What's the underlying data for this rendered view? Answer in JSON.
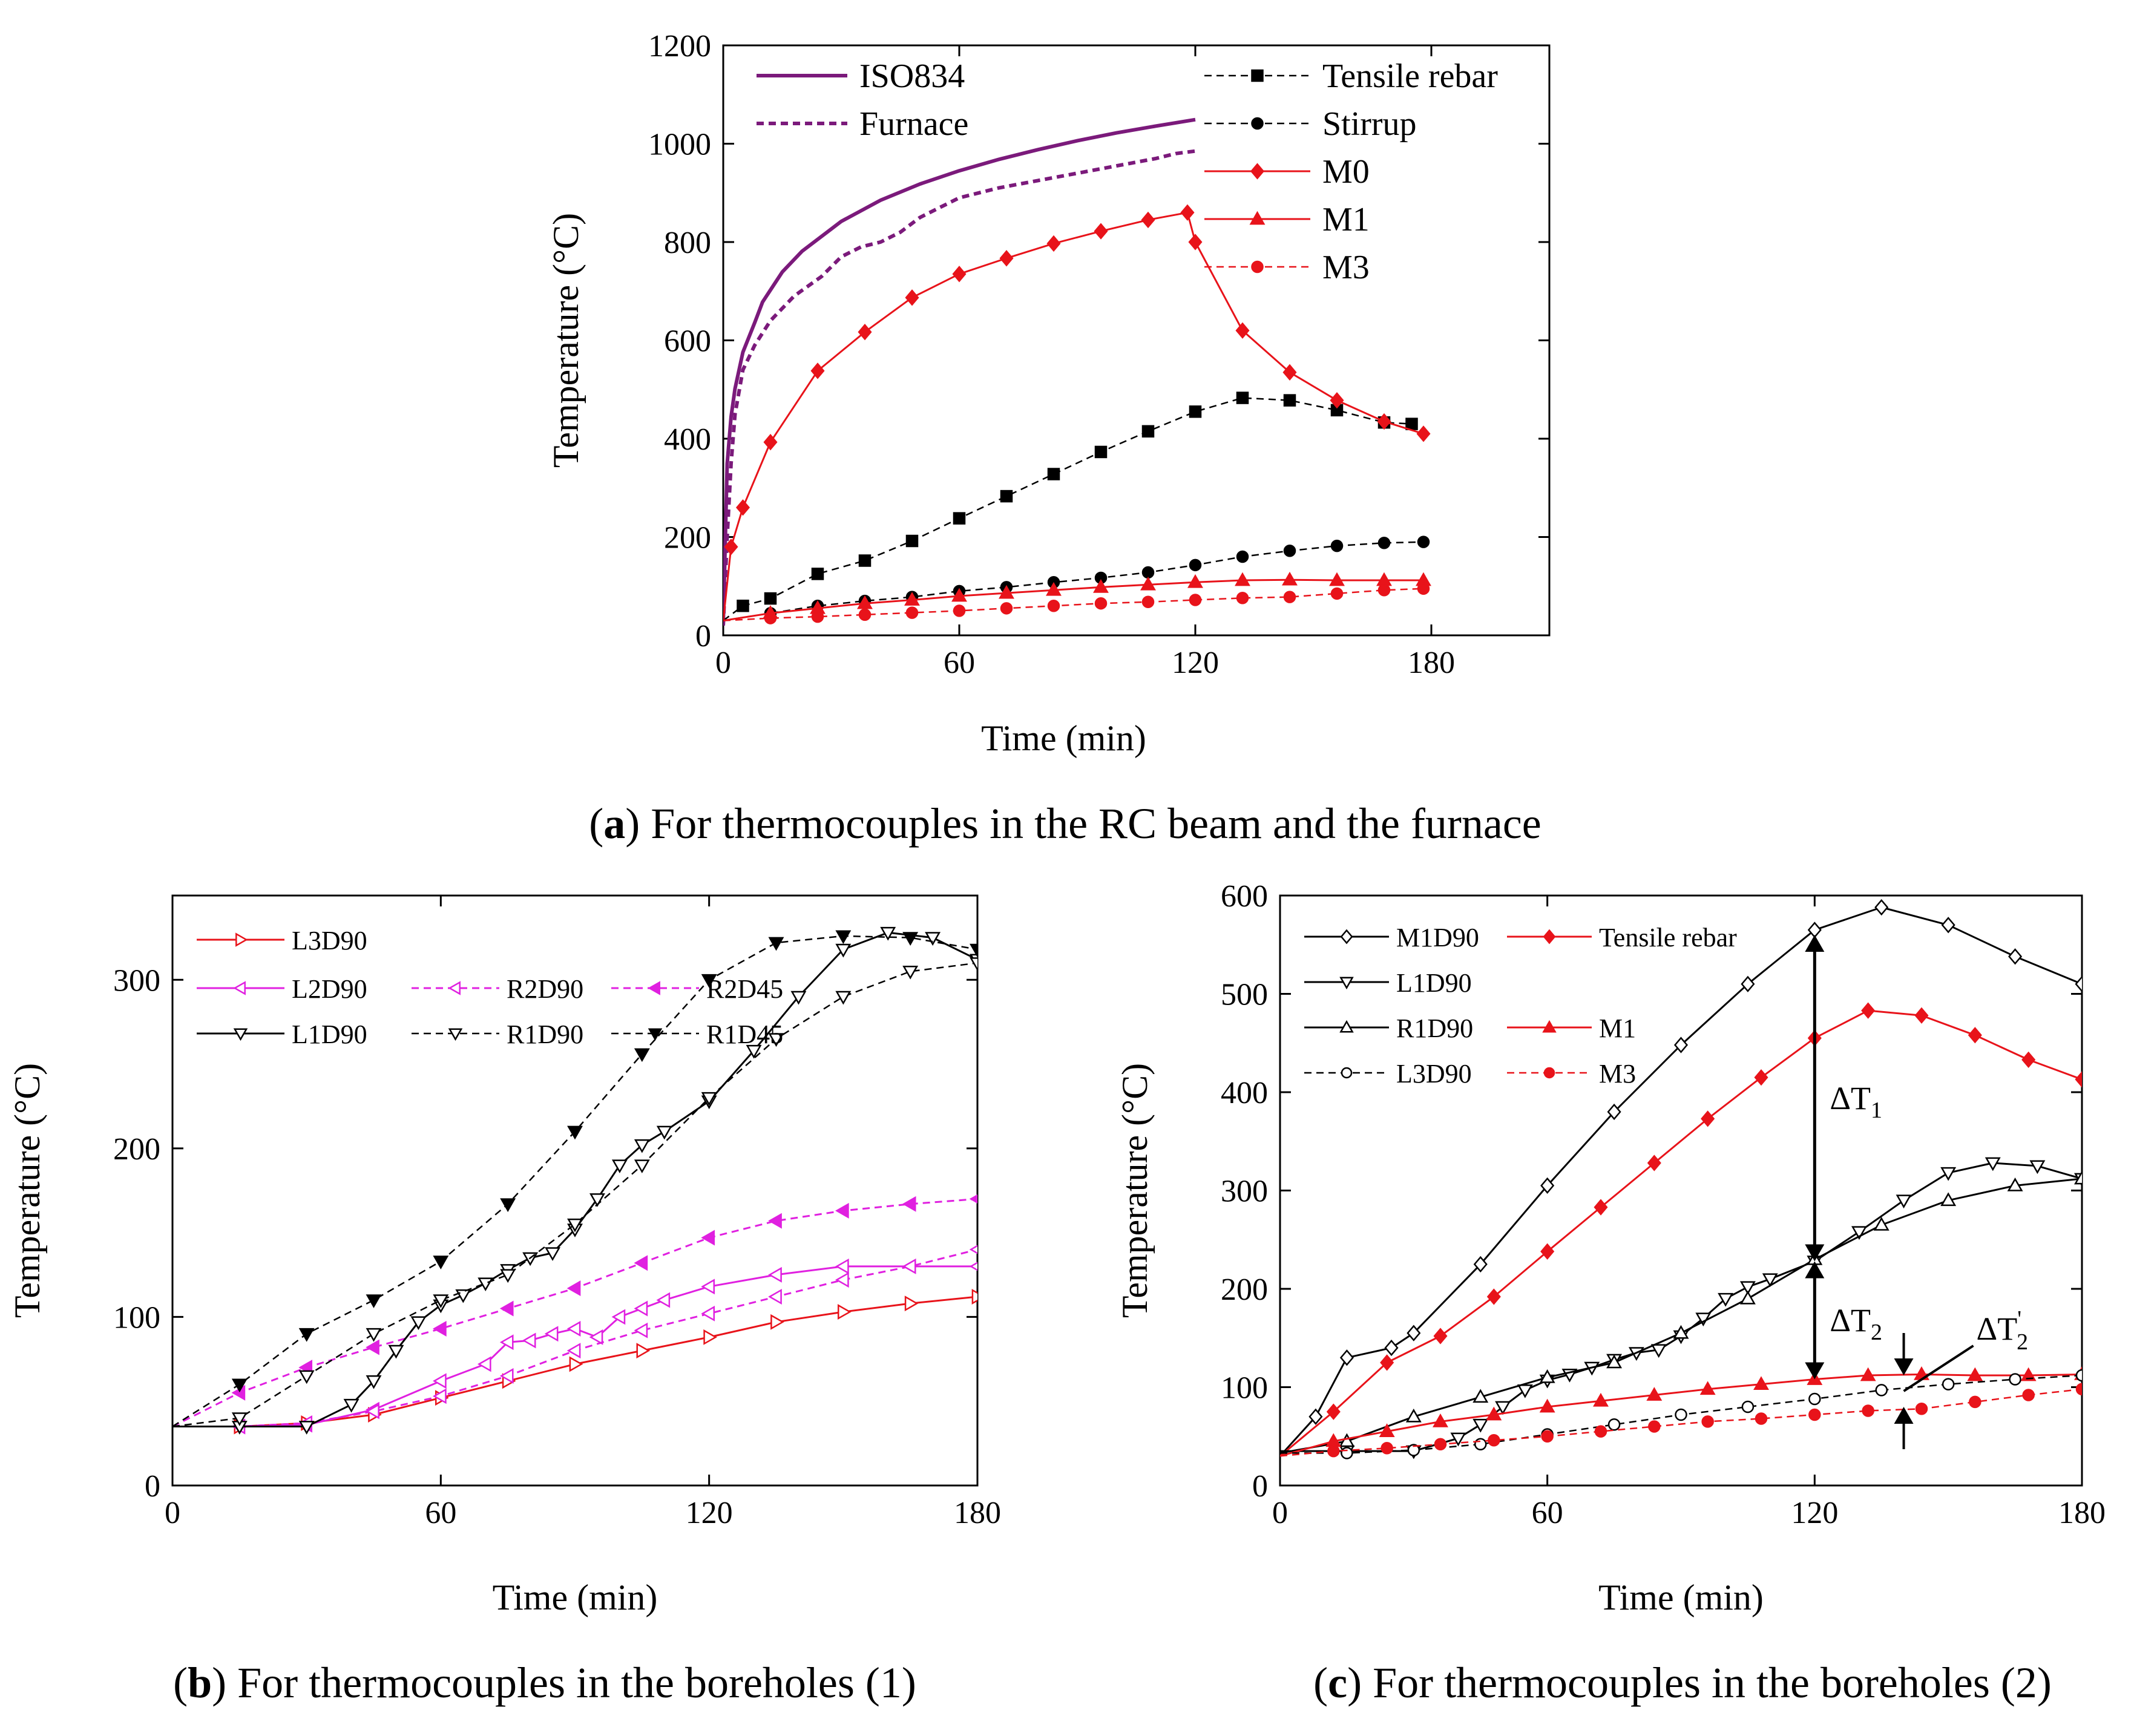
{
  "chart_data": [
    {
      "id": "a",
      "type": "line",
      "caption": {
        "letter": "a",
        "open": "(",
        "close": ")",
        "text": " For thermocouples in the RC beam and the furnace"
      },
      "xlabel": "Time (min)",
      "ylabel": "Temperature (°C)",
      "xlim": [
        0,
        210
      ],
      "ylim": [
        0,
        1200
      ],
      "xticks": [
        0,
        60,
        120,
        180
      ],
      "yticks": [
        0,
        200,
        400,
        600,
        800,
        1000,
        1200
      ],
      "series": [
        {
          "name": "ISO834",
          "color": "#7b1a7b",
          "style": "solid",
          "width": 6,
          "marker": "none",
          "x": [
            0,
            1,
            2,
            3,
            5,
            8,
            10,
            15,
            20,
            30,
            40,
            50,
            60,
            70,
            80,
            90,
            100,
            110,
            120
          ],
          "y": [
            20,
            349,
            445,
            502,
            576,
            636,
            678,
            739,
            781,
            842,
            885,
            918,
            945,
            968,
            988,
            1006,
            1022,
            1036,
            1049
          ]
        },
        {
          "name": "Furnace",
          "color": "#7b1a7b",
          "style": "dash",
          "width": 6,
          "marker": "none",
          "x": [
            0,
            1,
            2,
            3,
            5,
            8,
            12,
            18,
            25,
            30,
            35,
            40,
            45,
            50,
            55,
            60,
            70,
            80,
            90,
            100,
            110,
            115,
            120
          ],
          "y": [
            20,
            200,
            350,
            450,
            540,
            590,
            640,
            690,
            730,
            770,
            790,
            800,
            820,
            850,
            870,
            890,
            910,
            925,
            940,
            955,
            970,
            980,
            985
          ]
        },
        {
          "name": "Tensile rebar",
          "color": "#000000",
          "style": "dash",
          "width": 2.5,
          "marker": "square",
          "fill": "#000",
          "x": [
            0,
            5,
            12,
            24,
            36,
            48,
            60,
            72,
            84,
            96,
            108,
            120,
            132,
            144,
            156,
            168,
            175
          ],
          "y": [
            30,
            60,
            75,
            125,
            152,
            192,
            238,
            283,
            328,
            373,
            415,
            455,
            483,
            478,
            458,
            433,
            430
          ]
        },
        {
          "name": "Stirrup",
          "color": "#000000",
          "style": "dash",
          "width": 2.5,
          "marker": "circle",
          "fill": "#000",
          "x": [
            0,
            12,
            24,
            36,
            48,
            60,
            72,
            84,
            96,
            108,
            120,
            132,
            144,
            156,
            168,
            178
          ],
          "y": [
            30,
            45,
            60,
            70,
            78,
            90,
            98,
            108,
            117,
            128,
            143,
            160,
            172,
            182,
            188,
            190
          ]
        },
        {
          "name": "M0",
          "color": "#e8131a",
          "style": "solid",
          "width": 3,
          "marker": "diamond",
          "fill": "#e8131a",
          "x": [
            0,
            2,
            5,
            12,
            24,
            36,
            48,
            60,
            72,
            84,
            96,
            108,
            118,
            120,
            132,
            144,
            156,
            168,
            178
          ],
          "y": [
            30,
            180,
            260,
            393,
            538,
            617,
            687,
            735,
            767,
            797,
            822,
            845,
            860,
            800,
            620,
            535,
            478,
            435,
            410
          ]
        },
        {
          "name": "M1",
          "color": "#e8131a",
          "style": "solid",
          "width": 3,
          "marker": "triangle",
          "fill": "#e8131a",
          "x": [
            0,
            12,
            24,
            36,
            48,
            60,
            72,
            84,
            96,
            108,
            120,
            132,
            144,
            156,
            168,
            178
          ],
          "y": [
            30,
            45,
            55,
            65,
            72,
            80,
            86,
            92,
            98,
            103,
            108,
            112,
            113,
            112,
            112,
            112
          ]
        },
        {
          "name": "M3",
          "color": "#e8131a",
          "style": "dash",
          "width": 2.5,
          "marker": "circle",
          "fill": "#e8131a",
          "x": [
            0,
            12,
            24,
            36,
            48,
            60,
            72,
            84,
            96,
            108,
            120,
            132,
            144,
            156,
            168,
            178
          ],
          "y": [
            30,
            35,
            38,
            42,
            46,
            50,
            55,
            60,
            65,
            68,
            72,
            76,
            78,
            85,
            92,
            95
          ]
        }
      ]
    },
    {
      "id": "b",
      "type": "line",
      "caption": {
        "letter": "b",
        "open": "(",
        "close": ")",
        "text": " For thermocouples in the boreholes (1)"
      },
      "xlabel": "Time (min)",
      "ylabel": "Temperature (°C)",
      "xlim": [
        0,
        180
      ],
      "ylim": [
        0,
        350
      ],
      "xticks": [
        0,
        60,
        120,
        180
      ],
      "yticks": [
        0,
        100,
        200,
        300
      ],
      "series": [
        {
          "name": "L3D90",
          "color": "#e8131a",
          "style": "solid",
          "width": 3,
          "marker": "tri-right",
          "fill": "none",
          "x": [
            0,
            15,
            30,
            45,
            60,
            75,
            90,
            105,
            120,
            135,
            150,
            165,
            180
          ],
          "y": [
            35,
            35,
            37,
            42,
            52,
            62,
            72,
            80,
            88,
            97,
            103,
            108,
            112
          ]
        },
        {
          "name": "L2D90",
          "color": "#e020e0",
          "style": "solid",
          "width": 3,
          "marker": "tri-left",
          "fill": "none",
          "x": [
            0,
            15,
            30,
            45,
            60,
            70,
            75,
            80,
            85,
            90,
            95,
            100,
            105,
            110,
            120,
            135,
            150,
            165,
            180
          ],
          "y": [
            35,
            35,
            36,
            45,
            62,
            72,
            85,
            86,
            90,
            93,
            88,
            100,
            105,
            110,
            118,
            125,
            130,
            130,
            130
          ]
        },
        {
          "name": "R2D90",
          "color": "#e020e0",
          "style": "dash",
          "width": 3,
          "marker": "tri-left",
          "fill": "none",
          "x": [
            0,
            15,
            30,
            45,
            60,
            75,
            90,
            105,
            120,
            135,
            150,
            165,
            180
          ],
          "y": [
            35,
            35,
            37,
            44,
            53,
            65,
            80,
            92,
            102,
            112,
            122,
            130,
            140
          ]
        },
        {
          "name": "R2D45",
          "color": "#e020e0",
          "style": "dash",
          "width": 3,
          "marker": "tri-left",
          "fill": "#e020e0",
          "x": [
            0,
            15,
            30,
            45,
            60,
            75,
            90,
            105,
            120,
            135,
            150,
            165,
            180
          ],
          "y": [
            35,
            55,
            70,
            82,
            93,
            105,
            117,
            132,
            147,
            157,
            163,
            167,
            170
          ]
        },
        {
          "name": "L1D90",
          "color": "#000000",
          "style": "solid",
          "width": 3,
          "marker": "tri-down",
          "fill": "none",
          "x": [
            0,
            15,
            30,
            40,
            45,
            50,
            55,
            60,
            65,
            70,
            75,
            80,
            85,
            90,
            95,
            100,
            105,
            110,
            120,
            130,
            140,
            150,
            160,
            170,
            180
          ],
          "y": [
            35,
            35,
            35,
            48,
            62,
            80,
            97,
            107,
            113,
            120,
            128,
            135,
            138,
            152,
            170,
            190,
            202,
            210,
            228,
            258,
            290,
            318,
            328,
            325,
            312
          ]
        },
        {
          "name": "R1D90",
          "color": "#000000",
          "style": "dash",
          "width": 2.5,
          "marker": "tri-down",
          "fill": "none",
          "x": [
            0,
            15,
            30,
            45,
            60,
            75,
            90,
            105,
            120,
            135,
            150,
            165,
            180
          ],
          "y": [
            35,
            40,
            65,
            90,
            110,
            125,
            155,
            190,
            230,
            265,
            290,
            305,
            310
          ]
        },
        {
          "name": "R1D45",
          "color": "#000000",
          "style": "dash",
          "width": 2.5,
          "marker": "tri-down",
          "fill": "#000",
          "x": [
            0,
            15,
            30,
            45,
            60,
            75,
            90,
            105,
            120,
            135,
            150,
            165,
            180
          ],
          "y": [
            35,
            60,
            90,
            110,
            133,
            167,
            210,
            256,
            300,
            322,
            326,
            325,
            318
          ]
        }
      ]
    },
    {
      "id": "c",
      "type": "line",
      "caption": {
        "letter": "c",
        "open": "(",
        "close": ")",
        "text": " For thermocouples in the boreholes (2)"
      },
      "xlabel": "Time (min)",
      "ylabel": "Temperature (°C)",
      "xlim": [
        0,
        180
      ],
      "ylim": [
        0,
        600
      ],
      "xticks": [
        0,
        60,
        120,
        180
      ],
      "yticks": [
        0,
        100,
        200,
        300,
        400,
        500,
        600
      ],
      "series": [
        {
          "name": "M1D90",
          "color": "#000000",
          "style": "solid",
          "width": 3,
          "marker": "diamond",
          "fill": "none",
          "x": [
            0,
            8,
            15,
            25,
            30,
            45,
            60,
            75,
            90,
            105,
            120,
            135,
            150,
            165,
            180
          ],
          "y": [
            30,
            70,
            130,
            140,
            155,
            225,
            305,
            380,
            448,
            510,
            565,
            588,
            570,
            538,
            510
          ]
        },
        {
          "name": "Tensile rebar",
          "color": "#e8131a",
          "style": "solid",
          "width": 3,
          "marker": "diamond",
          "fill": "#e8131a",
          "x": [
            0,
            12,
            24,
            36,
            48,
            60,
            72,
            84,
            96,
            108,
            120,
            132,
            144,
            156,
            168,
            180
          ],
          "y": [
            30,
            75,
            125,
            152,
            192,
            238,
            283,
            328,
            373,
            415,
            455,
            483,
            478,
            458,
            433,
            413
          ]
        },
        {
          "name": "L1D90",
          "color": "#000000",
          "style": "solid",
          "width": 3,
          "marker": "tri-down",
          "fill": "none",
          "x": [
            0,
            15,
            30,
            40,
            45,
            50,
            55,
            60,
            65,
            70,
            75,
            80,
            85,
            90,
            95,
            100,
            105,
            110,
            120,
            130,
            140,
            150,
            160,
            170,
            180
          ],
          "y": [
            35,
            35,
            35,
            48,
            62,
            80,
            97,
            107,
            113,
            120,
            128,
            135,
            138,
            152,
            170,
            190,
            202,
            210,
            228,
            258,
            290,
            318,
            328,
            325,
            312
          ]
        },
        {
          "name": "R1D90",
          "color": "#000000",
          "style": "solid",
          "width": 3,
          "marker": "tri-up",
          "fill": "none",
          "x": [
            0,
            15,
            30,
            45,
            60,
            75,
            90,
            105,
            120,
            135,
            150,
            165,
            180
          ],
          "y": [
            33,
            45,
            70,
            90,
            110,
            125,
            155,
            190,
            230,
            265,
            290,
            305,
            312
          ]
        },
        {
          "name": "M1",
          "color": "#e8131a",
          "style": "solid",
          "width": 3,
          "marker": "triangle",
          "fill": "#e8131a",
          "x": [
            0,
            12,
            24,
            36,
            48,
            60,
            72,
            84,
            96,
            108,
            120,
            132,
            144,
            156,
            168,
            180
          ],
          "y": [
            30,
            45,
            55,
            65,
            72,
            80,
            86,
            92,
            98,
            103,
            108,
            112,
            113,
            112,
            112,
            113
          ]
        },
        {
          "name": "L3D90",
          "color": "#000000",
          "style": "dash",
          "width": 2.5,
          "marker": "circle",
          "fill": "none",
          "x": [
            0,
            15,
            30,
            45,
            60,
            75,
            90,
            105,
            120,
            135,
            150,
            165,
            180
          ],
          "y": [
            33,
            33,
            36,
            42,
            52,
            62,
            72,
            80,
            88,
            97,
            103,
            108,
            112
          ]
        },
        {
          "name": "M3",
          "color": "#e8131a",
          "style": "dash",
          "width": 2.5,
          "marker": "circle",
          "fill": "#e8131a",
          "x": [
            0,
            12,
            24,
            36,
            48,
            60,
            72,
            84,
            96,
            108,
            120,
            132,
            144,
            156,
            168,
            180
          ],
          "y": [
            30,
            35,
            38,
            42,
            46,
            50,
            55,
            60,
            65,
            68,
            72,
            76,
            78,
            85,
            92,
            98
          ]
        }
      ],
      "annotations": [
        {
          "label": "ΔT1",
          "base": "ΔT",
          "sub": "1",
          "sup": "",
          "x": 120,
          "y1": 228,
          "y2": 560
        },
        {
          "label": "ΔT2",
          "base": "ΔT",
          "sub": "2",
          "sup": "",
          "x": 120,
          "y1": 108,
          "y2": 228
        },
        {
          "label": "ΔT'2",
          "base": "ΔT",
          "sub": "2",
          "sup": "'",
          "x": 140,
          "y1": 80,
          "y2": 112
        }
      ]
    }
  ]
}
